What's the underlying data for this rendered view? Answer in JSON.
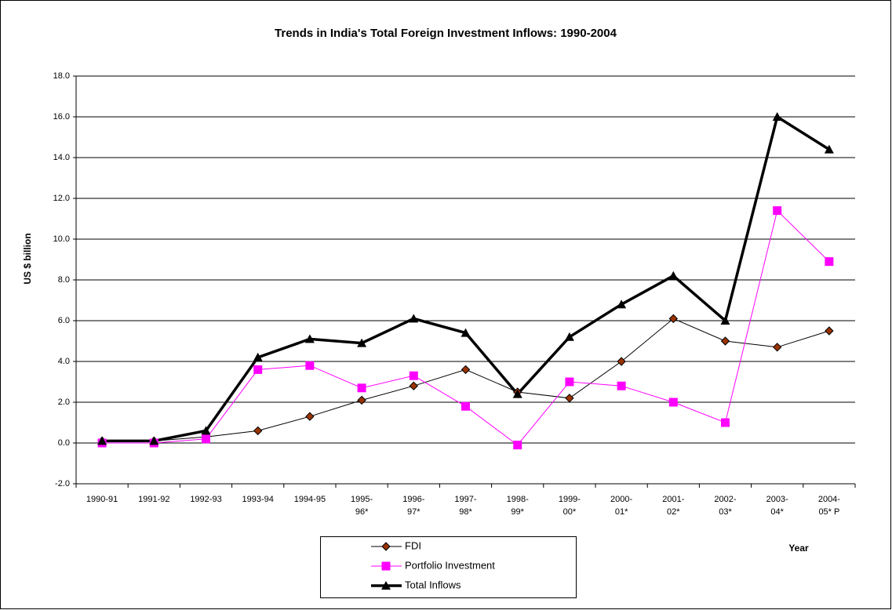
{
  "chart_data": {
    "type": "line",
    "title": "Trends in India's Total Foreign Investment Inflows: 1990-2004",
    "y_label": "US $ billion",
    "x_label": "Year",
    "categories": [
      "1990-91",
      "1991-92",
      "1992-93",
      "1993-94",
      "1994-95",
      "1995-96*",
      "1996-97*",
      "1997-98*",
      "1998-99*",
      "1999-00*",
      "2000-01*",
      "2001-02*",
      "2002-03*",
      "2003-04*",
      "2004-05* P"
    ],
    "series": [
      {
        "name": "FDI",
        "color": "#993300",
        "values": [
          0.1,
          0.1,
          0.3,
          0.6,
          1.3,
          2.1,
          2.8,
          3.6,
          2.5,
          2.2,
          4.0,
          6.1,
          5.0,
          4.7,
          5.5
        ]
      },
      {
        "name": "Portfolio Investment",
        "color": "#ff00ff",
        "values": [
          0.0,
          0.0,
          0.2,
          3.6,
          3.8,
          2.7,
          3.3,
          1.8,
          -0.1,
          3.0,
          2.8,
          2.0,
          1.0,
          11.4,
          8.9
        ]
      },
      {
        "name": "Total Inflows",
        "color": "#000000",
        "values": [
          0.1,
          0.1,
          0.6,
          4.2,
          5.1,
          4.9,
          6.1,
          5.4,
          2.4,
          5.2,
          6.8,
          8.2,
          6.0,
          16.0,
          14.4
        ]
      }
    ],
    "ylim": [
      -2,
      18
    ],
    "yticks": [
      {
        "value": -2,
        "label": "-2.0"
      },
      {
        "value": 0,
        "label": "0.0"
      },
      {
        "value": 2,
        "label": "2.0"
      },
      {
        "value": 4,
        "label": "4.0"
      },
      {
        "value": 6,
        "label": "6.0"
      },
      {
        "value": 8,
        "label": "8.0"
      },
      {
        "value": 10,
        "label": "10.0"
      },
      {
        "value": 12,
        "label": "12.0"
      },
      {
        "value": 14,
        "label": "14.0"
      },
      {
        "value": 16,
        "label": "16.0"
      },
      {
        "value": 18,
        "label": "18.0"
      }
    ],
    "grid": true,
    "legend": "bottom"
  }
}
